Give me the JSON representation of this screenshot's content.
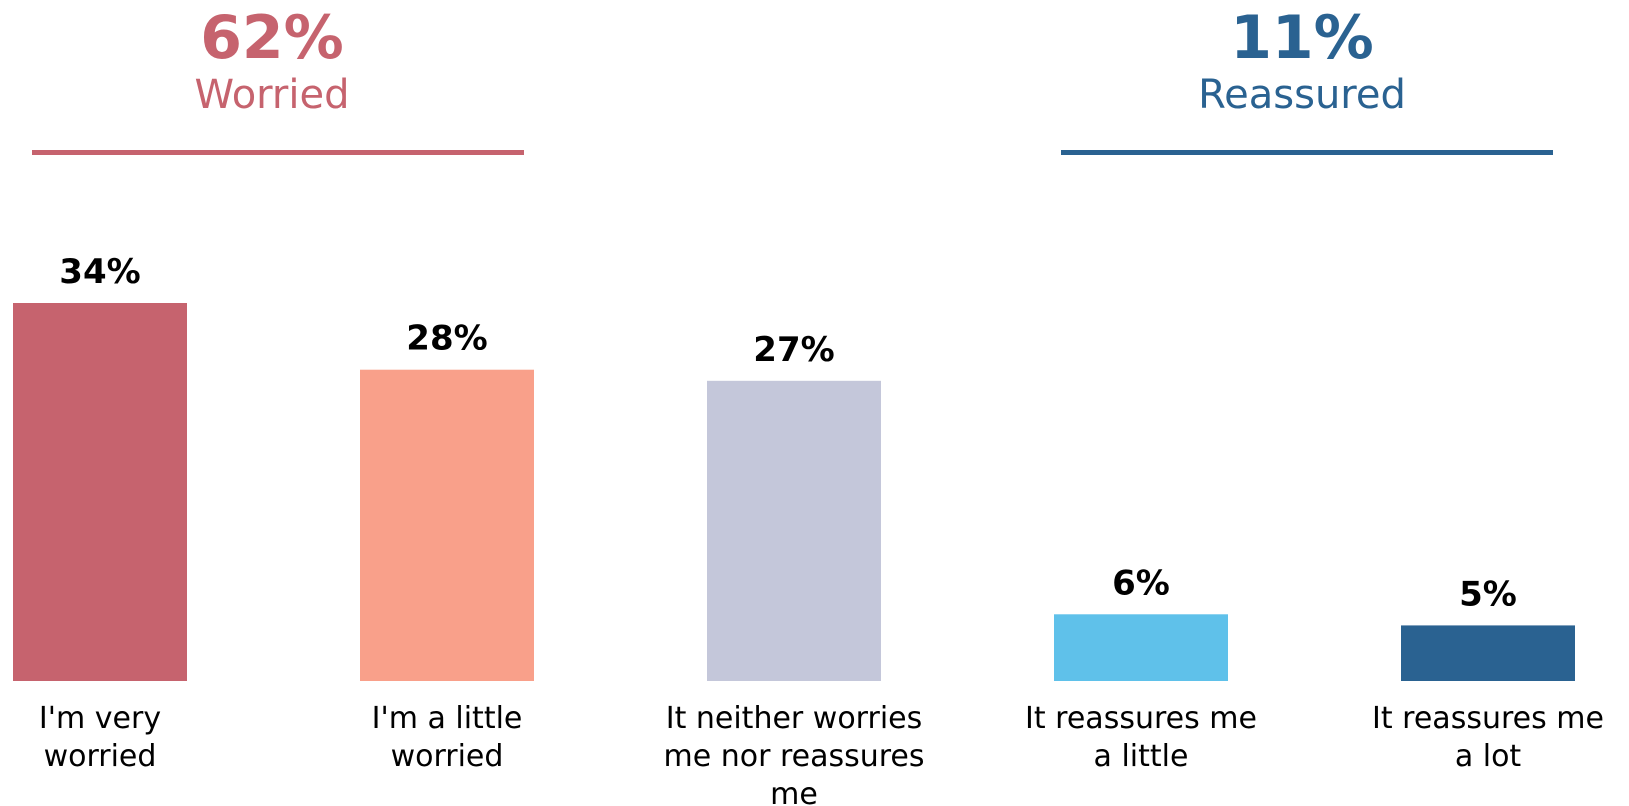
{
  "chart_data": {
    "type": "bar",
    "categories": [
      [
        "I'm very",
        "worried"
      ],
      [
        "I'm a little",
        "worried"
      ],
      [
        "It neither worries",
        "me nor reassures",
        "me"
      ],
      [
        "It reassures me",
        "a little"
      ],
      [
        "It reassures me",
        "a lot"
      ]
    ],
    "values": [
      34,
      28,
      27,
      6,
      5
    ],
    "value_labels": [
      "34%",
      "28%",
      "27%",
      "6%",
      "5%"
    ],
    "bar_colors": [
      "#C6636E",
      "#F9A08A",
      "#C4C7DA",
      "#5FC1EA",
      "#2A6291"
    ],
    "ylim": [
      0,
      34
    ],
    "grid": false,
    "title": "",
    "xlabel": "",
    "ylabel": "",
    "summaries": [
      {
        "value": "62%",
        "label": "Worried",
        "color": "#C6636E",
        "bars": [
          0,
          1
        ]
      },
      {
        "value": "11%",
        "label": "Reassured",
        "color": "#2A6291",
        "bars": [
          3,
          4
        ]
      }
    ]
  }
}
